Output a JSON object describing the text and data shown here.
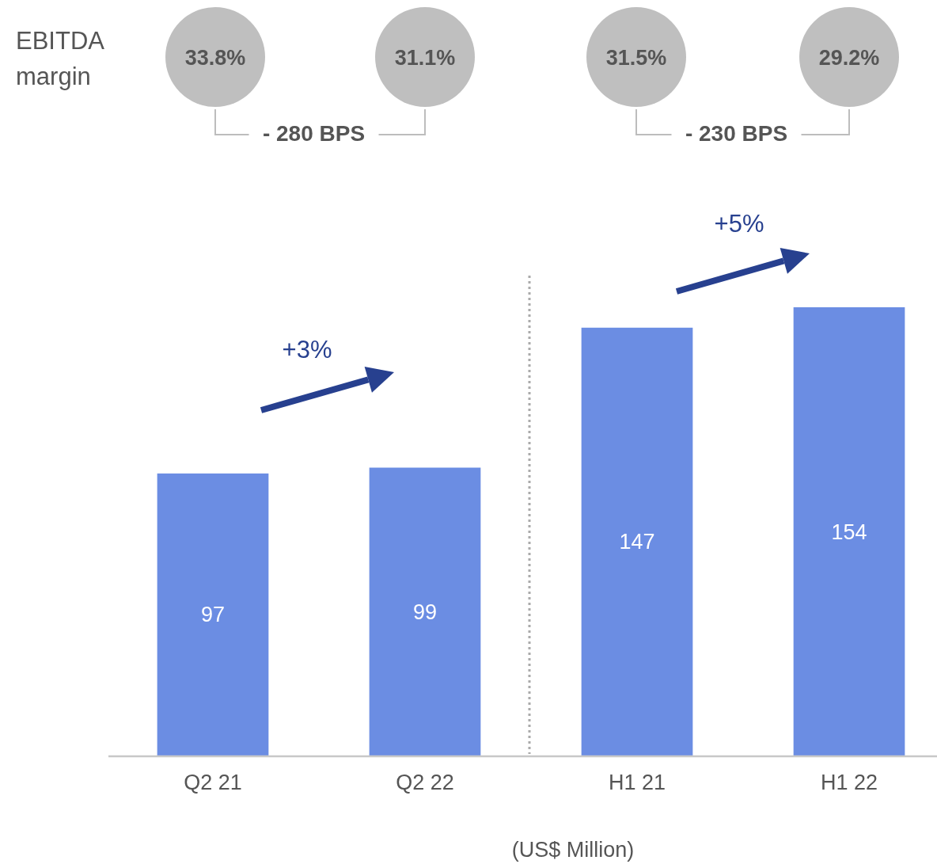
{
  "chart_data": {
    "type": "bar",
    "categories": [
      "Q2 21",
      "Q2 22",
      "H1 21",
      "H1 22"
    ],
    "values": [
      97,
      99,
      147,
      154
    ],
    "color": "#6b8de3",
    "data_labels": true,
    "annotations": [
      "EBITDA margin",
      "33.8%",
      "31.1%",
      "31.5%",
      "29.2%",
      "- 280 BPS",
      "- 230 BPS",
      "+3%",
      "+5%",
      "(US$ Million)"
    ]
  }
}
